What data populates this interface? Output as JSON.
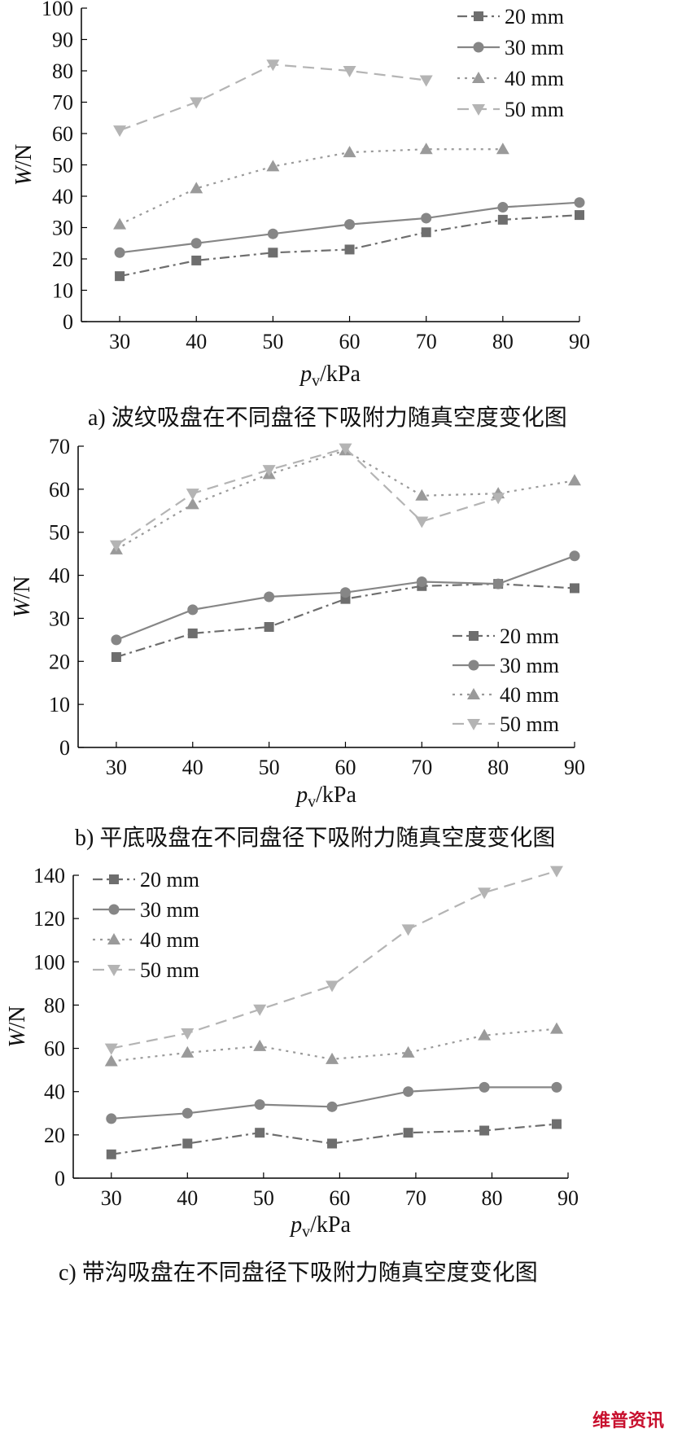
{
  "watermark": "维普资讯",
  "chart_data": [
    {
      "type": "line",
      "caption": "a)  波纹吸盘在不同盘径下吸附力随真空度变化图",
      "xlabel": "pv/kPa",
      "xlabel_main": "p",
      "xlabel_sub": "v",
      "xlabel_unit": "/kPa",
      "ylabel": "W/N",
      "ylabel_italic": "W",
      "ylabel_unit": "/N",
      "xlim": [
        25,
        90
      ],
      "ylim": [
        0,
        100
      ],
      "xticks": [
        30,
        40,
        50,
        60,
        70,
        80,
        90
      ],
      "yticks": [
        0,
        10,
        20,
        30,
        40,
        50,
        60,
        70,
        80,
        90,
        100
      ],
      "legend_position": "top-right",
      "grid": false,
      "series": [
        {
          "name": "20 mm",
          "marker": "square",
          "dash": "dashdot",
          "color": "#6e6e6e",
          "x": [
            30,
            40,
            50,
            60,
            70,
            80,
            90
          ],
          "y": [
            14.5,
            19.5,
            22,
            23,
            28.5,
            32.5,
            34
          ]
        },
        {
          "name": "30 mm",
          "marker": "circle",
          "dash": "solid",
          "color": "#868686",
          "x": [
            30,
            40,
            50,
            60,
            70,
            80,
            90
          ],
          "y": [
            22,
            25,
            28,
            31,
            33,
            36.5,
            38
          ]
        },
        {
          "name": "40 mm",
          "marker": "triangle-up",
          "dash": "dotted",
          "color": "#9a9a9a",
          "x": [
            30,
            40,
            50,
            60,
            70,
            80
          ],
          "y": [
            31,
            42.5,
            49.5,
            54,
            55,
            55
          ]
        },
        {
          "name": "50 mm",
          "marker": "triangle-down",
          "dash": "dashed",
          "color": "#b4b4b4",
          "x": [
            30,
            40,
            50,
            60,
            70
          ],
          "y": [
            61,
            70,
            82,
            80,
            77
          ]
        }
      ]
    },
    {
      "type": "line",
      "caption": "b)  平底吸盘在不同盘径下吸附力随真空度变化图",
      "xlabel": "pv/kPa",
      "xlabel_main": "p",
      "xlabel_sub": "v",
      "xlabel_unit": "/kPa",
      "ylabel": "W/N",
      "ylabel_italic": "W",
      "ylabel_unit": "/N",
      "xlim": [
        25,
        90
      ],
      "ylim": [
        0,
        70
      ],
      "xticks": [
        30,
        40,
        50,
        60,
        70,
        80,
        90
      ],
      "yticks": [
        0,
        10,
        20,
        30,
        40,
        50,
        60,
        70
      ],
      "legend_position": "bottom-right",
      "grid": false,
      "series": [
        {
          "name": "20 mm",
          "marker": "square",
          "dash": "dashdot",
          "color": "#6e6e6e",
          "x": [
            30,
            40,
            50,
            60,
            70,
            80,
            90
          ],
          "y": [
            21,
            26.5,
            28,
            34.5,
            37.5,
            38,
            37
          ]
        },
        {
          "name": "30 mm",
          "marker": "circle",
          "dash": "solid",
          "color": "#868686",
          "x": [
            30,
            40,
            50,
            60,
            70,
            80,
            90
          ],
          "y": [
            25,
            32,
            35,
            36,
            38.5,
            38,
            44.5
          ]
        },
        {
          "name": "40 mm",
          "marker": "triangle-up",
          "dash": "dotted",
          "color": "#9a9a9a",
          "x": [
            30,
            40,
            50,
            60,
            70,
            80,
            90
          ],
          "y": [
            46,
            56.5,
            63.5,
            69,
            58.5,
            59,
            62
          ]
        },
        {
          "name": "50 mm",
          "marker": "triangle-down",
          "dash": "dashed",
          "color": "#b4b4b4",
          "x": [
            30,
            40,
            50,
            60,
            70,
            80
          ],
          "y": [
            47,
            59,
            64.5,
            69.5,
            52.5,
            58
          ]
        }
      ]
    },
    {
      "type": "line",
      "caption": "c)  带沟吸盘在不同盘径下吸附力随真空度变化图",
      "xlabel": "pv/kPa",
      "xlabel_main": "p",
      "xlabel_sub": "v",
      "xlabel_unit": "/kPa",
      "ylabel": "W/N",
      "ylabel_italic": "W",
      "ylabel_unit": "/N",
      "xlim": [
        25,
        90
      ],
      "ylim": [
        0,
        140
      ],
      "xticks": [
        30,
        40,
        50,
        60,
        70,
        80,
        90
      ],
      "yticks": [
        0,
        20,
        40,
        60,
        80,
        100,
        120,
        140
      ],
      "legend_position": "top-left",
      "grid": false,
      "series": [
        {
          "name": "20 mm",
          "marker": "square",
          "dash": "dashdot",
          "color": "#6e6e6e",
          "x": [
            30,
            40,
            49.5,
            59,
            69,
            79,
            88.5
          ],
          "y": [
            11,
            16,
            21,
            16,
            21,
            22,
            25
          ]
        },
        {
          "name": "30 mm",
          "marker": "circle",
          "dash": "solid",
          "color": "#868686",
          "x": [
            30,
            40,
            49.5,
            59,
            69,
            79,
            88.5
          ],
          "y": [
            27.5,
            30,
            34,
            33,
            40,
            42,
            42
          ]
        },
        {
          "name": "40 mm",
          "marker": "triangle-up",
          "dash": "dotted",
          "color": "#9a9a9a",
          "x": [
            30,
            40,
            49.5,
            59,
            69,
            79,
            88.5
          ],
          "y": [
            54,
            58,
            61,
            55,
            58,
            66,
            69
          ]
        },
        {
          "name": "50 mm",
          "marker": "triangle-down",
          "dash": "dashed",
          "color": "#b4b4b4",
          "x": [
            30,
            40,
            49.5,
            59,
            69,
            79,
            88.5
          ],
          "y": [
            60,
            67,
            78,
            89,
            115,
            132,
            142
          ]
        }
      ]
    }
  ]
}
